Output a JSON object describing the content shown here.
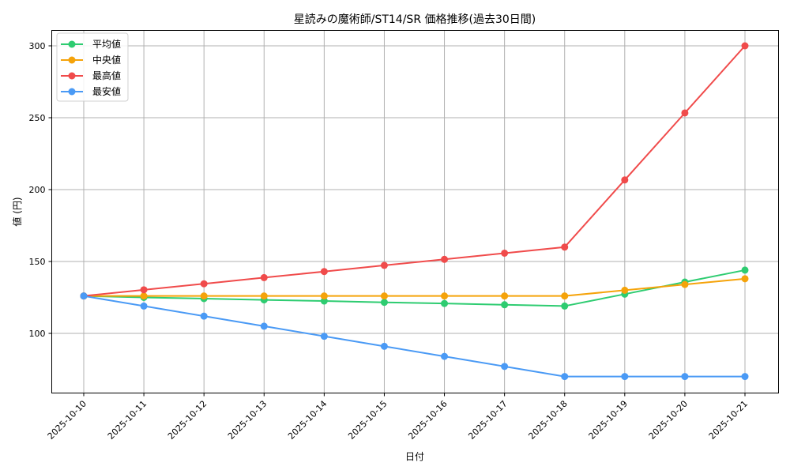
{
  "chart_data": {
    "type": "line",
    "title": "星読みの魔術師/ST14/SR 価格推移(過去30日間)",
    "xlabel": "日付",
    "ylabel": "値 (円)",
    "categories": [
      "2025-10-10",
      "2025-10-11",
      "2025-10-12",
      "2025-10-13",
      "2025-10-14",
      "2025-10-15",
      "2025-10-16",
      "2025-10-17",
      "2025-10-18",
      "2025-10-19",
      "2025-10-20",
      "2025-10-21"
    ],
    "series": [
      {
        "name": "平均値",
        "color": "#2ecc71",
        "values": [
          126,
          125,
          124.2,
          123.3,
          122.5,
          121.6,
          120.8,
          119.9,
          119,
          127.3,
          135.7,
          144
        ]
      },
      {
        "name": "中央値",
        "color": "#f5a30a",
        "values": [
          126,
          126,
          126,
          126,
          126,
          126,
          126,
          126,
          126,
          130,
          134,
          138
        ]
      },
      {
        "name": "最高値",
        "color": "#f04b4b",
        "values": [
          126,
          130.3,
          134.5,
          138.8,
          143,
          147.3,
          151.5,
          155.8,
          160,
          206.7,
          253.3,
          300
        ]
      },
      {
        "name": "最安値",
        "color": "#4a9af5",
        "values": [
          126,
          119,
          112,
          105,
          98,
          91,
          84,
          77,
          70,
          70,
          70,
          70
        ]
      }
    ],
    "yticks": [
      100,
      150,
      200,
      250,
      300
    ],
    "ylim": [
      58,
      310
    ],
    "grid": true,
    "legend_position": "upper left"
  }
}
